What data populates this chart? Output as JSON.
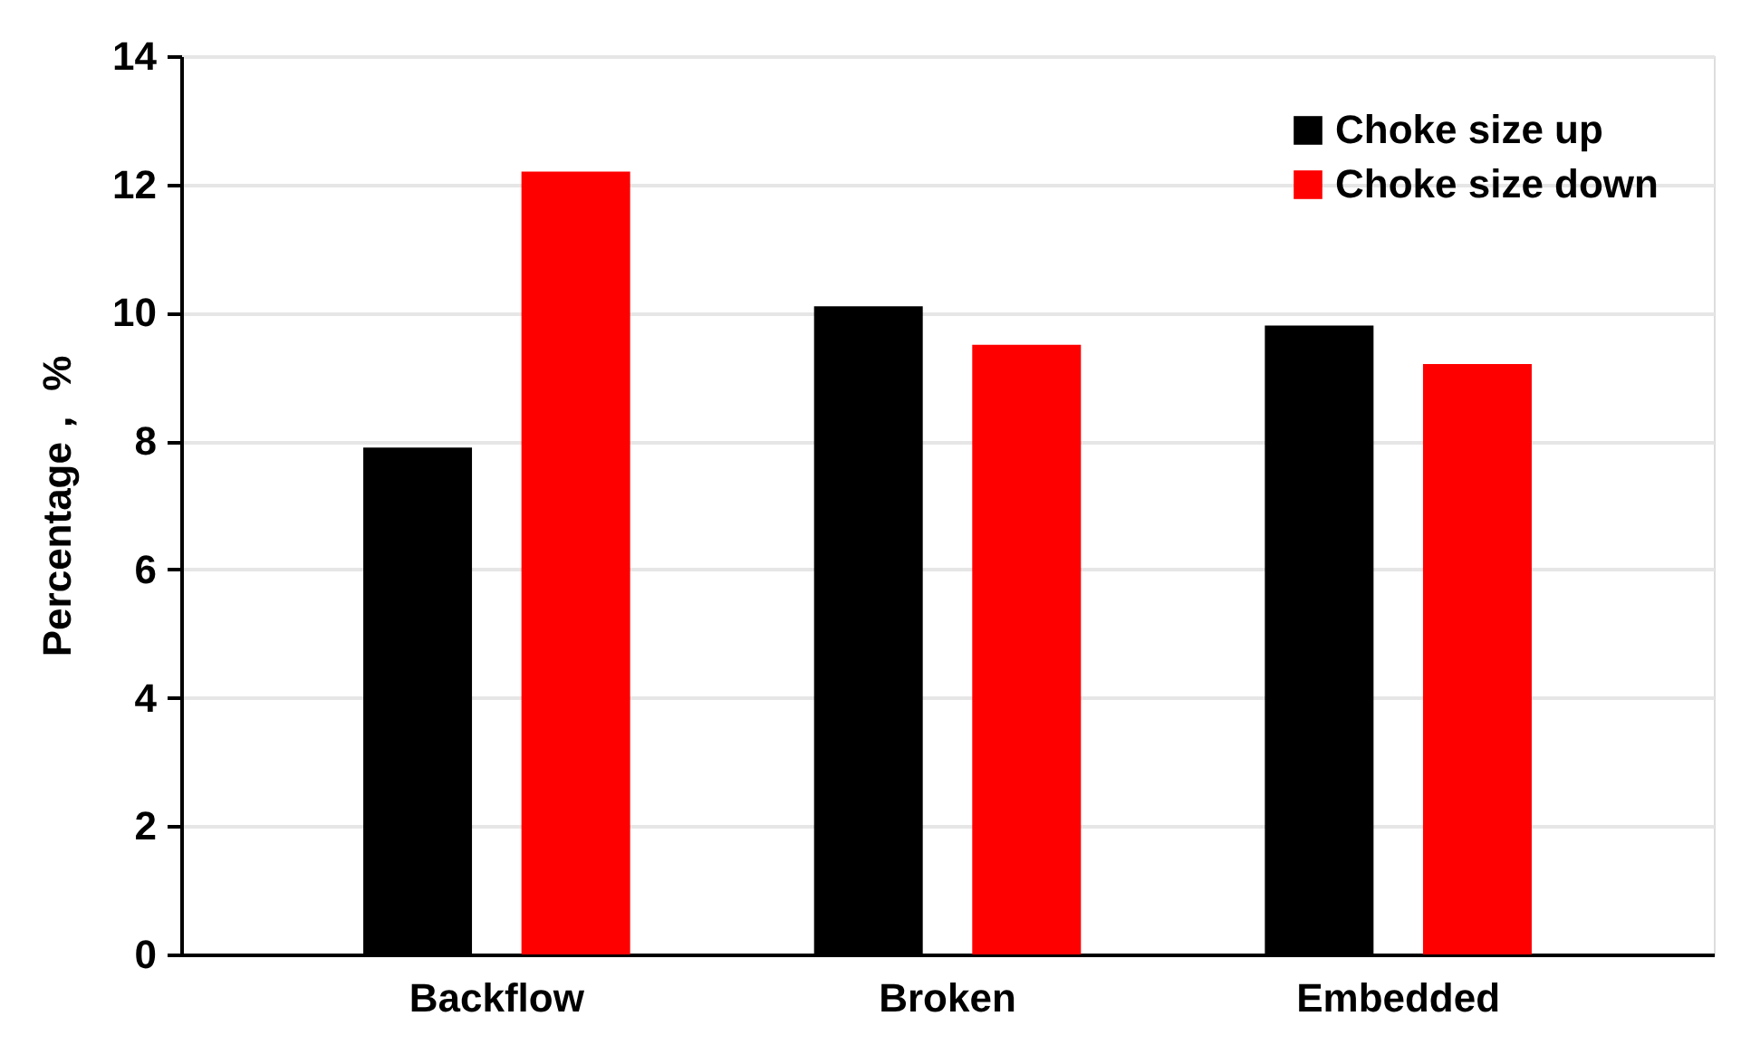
{
  "chart_data": {
    "type": "bar",
    "ylabel": "Percentage， %",
    "categories": [
      "Backflow",
      "Broken",
      "Embedded"
    ],
    "series": [
      {
        "name": "Choke size up",
        "color": "#000000",
        "values": [
          7.9,
          10.1,
          9.8
        ]
      },
      {
        "name": "Choke size down",
        "color": "#ff0000",
        "values": [
          12.2,
          9.5,
          9.2
        ]
      }
    ],
    "ylim": [
      0,
      14
    ],
    "yticks": [
      0,
      2,
      4,
      6,
      8,
      10,
      12,
      14
    ],
    "grid": "y",
    "legend": "top right"
  }
}
